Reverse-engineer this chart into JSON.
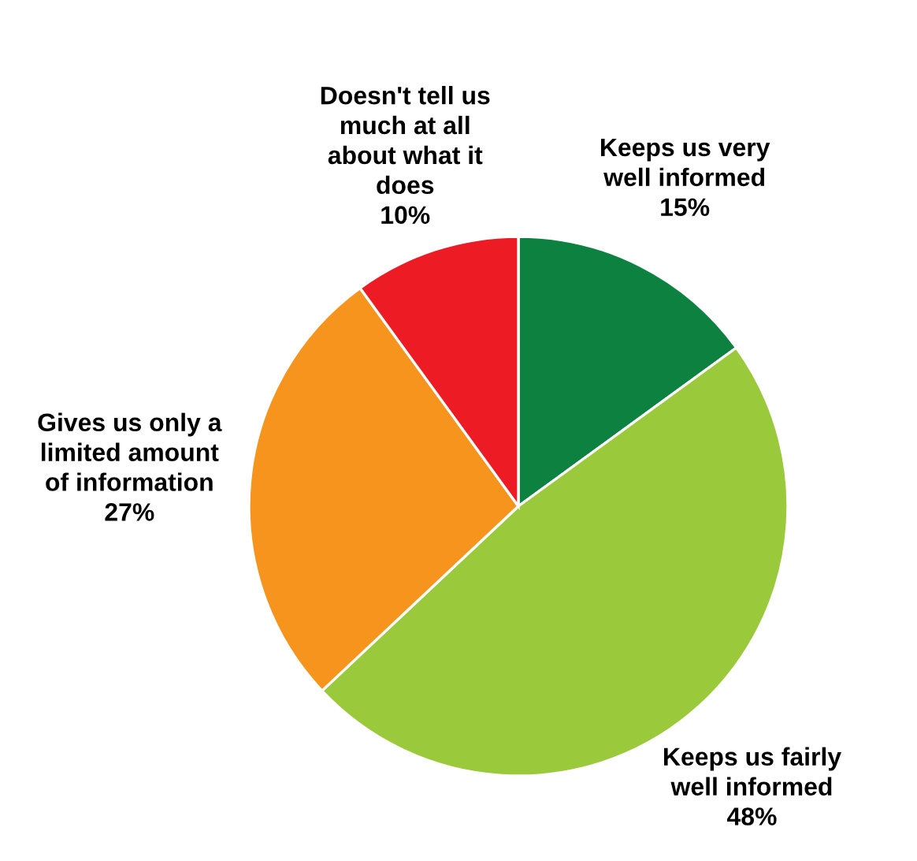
{
  "chart_data": {
    "type": "pie",
    "categories": [
      "Keeps us very\nwell informed",
      "Keeps us fairly\nwell informed",
      "Gives us only a\nlimited amount\nof information",
      "Doesn't tell us\nmuch at all\nabout what it\ndoes"
    ],
    "values": [
      15,
      48,
      27,
      10
    ],
    "colors": [
      "#0c8140",
      "#9bc93c",
      "#f7941d",
      "#ed1c24"
    ],
    "value_labels": [
      "15%",
      "48%",
      "27%",
      "10%"
    ]
  }
}
